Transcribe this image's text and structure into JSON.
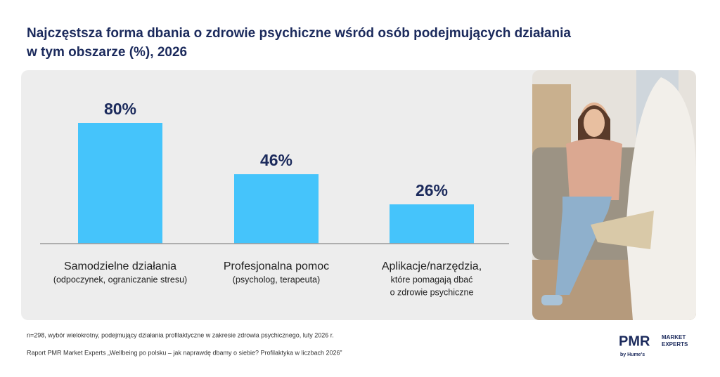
{
  "chart_data": {
    "type": "bar",
    "title": [
      "Najczęstsza forma dbania o zdrowie psychiczne wśród osób podejmujących działania",
      "w tym obszarze (%), 2026"
    ],
    "categories": [
      "Samodzielne działania",
      "Profesjonalna pomoc",
      "Aplikacje/narzędzia,"
    ],
    "category_notes": [
      [
        "(odpoczynek, ograniczanie stresu)"
      ],
      [
        "(psycholog, terapeuta)"
      ],
      [
        "które pomagają dbać",
        "o zdrowie psychiczne"
      ]
    ],
    "values": [
      80,
      46,
      26
    ],
    "value_labels": [
      "80%",
      "46%",
      "26%"
    ],
    "color": "#45c4fb",
    "ylim": [
      0,
      100
    ],
    "footnote": "n=298, wybór wielokrotny, podejmujący działania profilaktyczne w zakresie zdrowia psychicznego, luty 2026 r.",
    "source": "Raport PMR Market Experts „Wellbeing po polsku – jak naprawdę dbamy o siebie? Profilaktyka w liczbach 2026”",
    "logo": {
      "brand": "PMR",
      "line1": "MARKET",
      "line2": "EXPERTS",
      "tagline": "by Hume's"
    }
  }
}
